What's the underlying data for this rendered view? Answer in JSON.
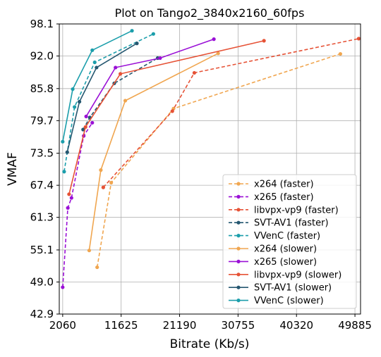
{
  "chart_data": {
    "type": "line",
    "title": "Plot on Tango2_3840x2160_60fps",
    "xlabel": "Bitrate (Kb/s)",
    "ylabel": "VMAF",
    "xlim": [
      1500,
      50800
    ],
    "ylim": [
      42.9,
      98.1
    ],
    "xticks": [
      2060,
      11625,
      21190,
      30755,
      40320,
      49885
    ],
    "xtick_labels": [
      "2060",
      "11625",
      "21190",
      "30755",
      "40320",
      "49885"
    ],
    "yticks": [
      42.9,
      49.0,
      55.1,
      61.3,
      67.4,
      73.5,
      79.7,
      85.8,
      92.0,
      98.1
    ],
    "ytick_labels": [
      "42.9",
      "49.0",
      "55.1",
      "61.3",
      "67.4",
      "73.5",
      "79.7",
      "85.8",
      "92.0",
      "98.1"
    ],
    "grid": true,
    "legend_position": "lower-right",
    "series": [
      {
        "name": "x264 (faster)",
        "color": "#f0a650",
        "dash": true,
        "x": [
          7700,
          10000,
          20200,
          47500
        ],
        "y": [
          51.8,
          67.9,
          82.0,
          92.4
        ]
      },
      {
        "name": "x265 (faster)",
        "color": "#9a10d6",
        "dash": true,
        "x": [
          2060,
          2900,
          3500,
          5500,
          6900
        ],
        "y": [
          48.0,
          63.1,
          65.0,
          76.8,
          79.3
        ]
      },
      {
        "name": "libvpx-vp9 (faster)",
        "color": "#e65236",
        "dash": true,
        "x": [
          8700,
          20000,
          23600,
          50500
        ],
        "y": [
          67.0,
          81.5,
          88.8,
          95.3
        ]
      },
      {
        "name": "SVT-AV1 (faster)",
        "color": "#255770",
        "dash": true,
        "x": [
          5400,
          6500,
          10500,
          17600
        ],
        "y": [
          78.0,
          80.3,
          86.8,
          91.6
        ]
      },
      {
        "name": "VVenC (faster)",
        "color": "#1b9eab",
        "dash": true,
        "x": [
          2300,
          4000,
          7300,
          16900
        ],
        "y": [
          70.0,
          82.3,
          90.8,
          96.2
        ]
      },
      {
        "name": "x264 (slower)",
        "color": "#f0a650",
        "dash": false,
        "x": [
          6400,
          8300,
          12300,
          27500
        ],
        "y": [
          55.0,
          70.3,
          83.5,
          92.5
        ]
      },
      {
        "name": "x265 (slower)",
        "color": "#9a10d6",
        "dash": false,
        "x": [
          5900,
          10700,
          18000,
          26800
        ],
        "y": [
          80.5,
          89.8,
          91.6,
          95.2
        ]
      },
      {
        "name": "libvpx-vp9 (slower)",
        "color": "#e65236",
        "dash": false,
        "x": [
          3100,
          5800,
          11500,
          35000
        ],
        "y": [
          65.7,
          78.5,
          88.6,
          94.9
        ]
      },
      {
        "name": "SVT-AV1 (slower)",
        "color": "#255770",
        "dash": false,
        "x": [
          2800,
          4800,
          7600,
          14200
        ],
        "y": [
          73.7,
          83.3,
          89.8,
          94.4
        ]
      },
      {
        "name": "VVenC (slower)",
        "color": "#1b9eab",
        "dash": false,
        "x": [
          2060,
          3700,
          6900,
          13400
        ],
        "y": [
          75.7,
          85.7,
          93.1,
          96.8
        ]
      }
    ]
  }
}
